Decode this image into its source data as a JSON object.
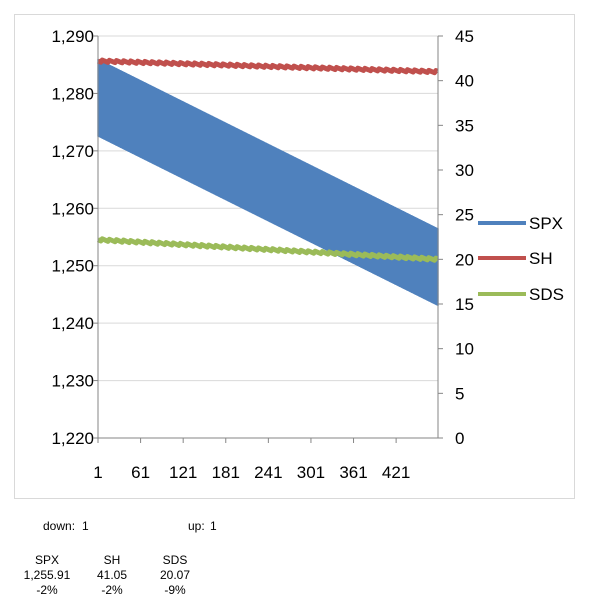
{
  "chart_data": {
    "type": "line",
    "title": "",
    "xlabel": "",
    "ylabel": "",
    "x_ticks": [
      "1",
      "61",
      "121",
      "181",
      "241",
      "301",
      "361",
      "421"
    ],
    "x_range": [
      1,
      480
    ],
    "y_left": {
      "ticks": [
        "1,220",
        "1,230",
        "1,240",
        "1,250",
        "1,260",
        "1,270",
        "1,280",
        "1,290"
      ],
      "ylim": [
        1220,
        1290
      ]
    },
    "y_right": {
      "ticks": [
        "0",
        "5",
        "10",
        "15",
        "20",
        "25",
        "30",
        "35",
        "40",
        "45"
      ],
      "ylim": [
        0,
        45
      ]
    },
    "grid": "horizontal major gridlines on left axis",
    "legend_position": "right",
    "series": [
      {
        "name": "SPX",
        "axis": "left",
        "color": "#4f81bd",
        "style": "oscillating band",
        "upper": {
          "x": [
            1,
            480
          ],
          "y": [
            1286.0,
            1256.5
          ]
        },
        "lower": {
          "x": [
            1,
            480
          ],
          "y": [
            1272.5,
            1243.0
          ]
        }
      },
      {
        "name": "SH",
        "axis": "right",
        "color": "#c0504d",
        "x": [
          1,
          480
        ],
        "y": [
          42.2,
          41.0
        ]
      },
      {
        "name": "SDS",
        "axis": "right",
        "color": "#9bbb59",
        "x": [
          1,
          480
        ],
        "y": [
          22.2,
          20.0
        ]
      }
    ]
  },
  "footer": {
    "down_label": "down:",
    "down_value": "1",
    "up_label": "up:",
    "up_value": "1",
    "stats": [
      {
        "name": "SPX",
        "price": "1,255.91",
        "change": "-2%"
      },
      {
        "name": "SH",
        "price": "41.05",
        "change": "-2%"
      },
      {
        "name": "SDS",
        "price": "20.07",
        "change": "-9%"
      }
    ]
  }
}
